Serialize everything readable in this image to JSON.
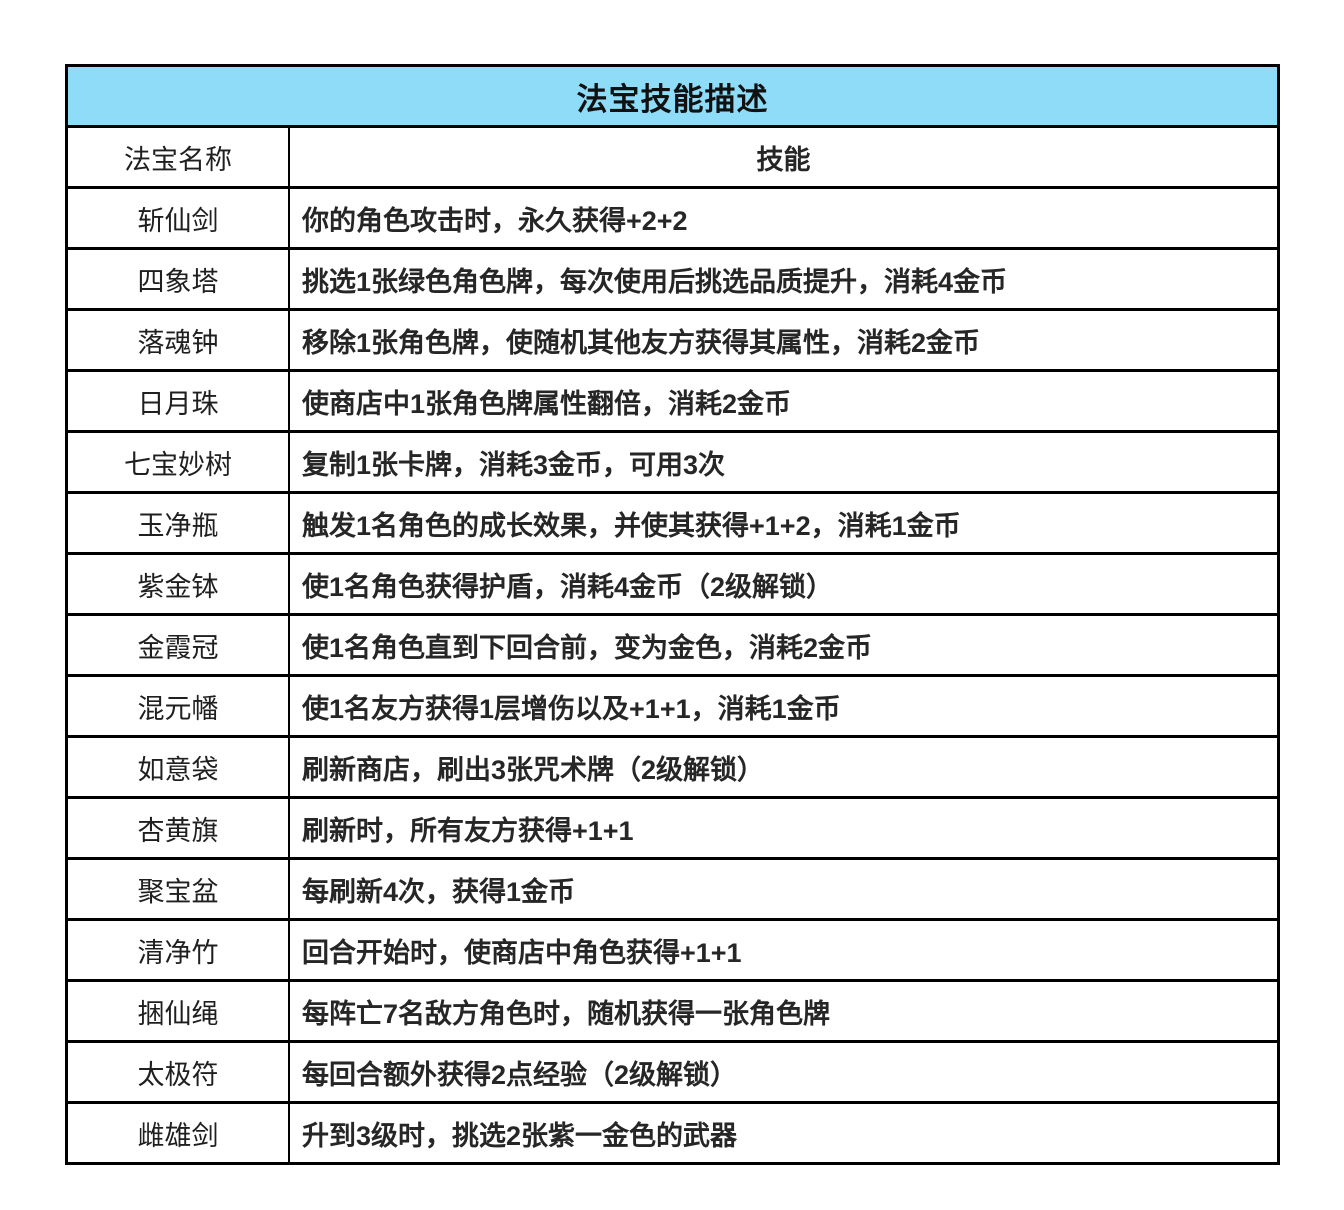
{
  "title": "法宝技能描述",
  "table": {
    "headers": {
      "name": "法宝名称",
      "skill": "技能"
    },
    "rows": [
      {
        "name": "斩仙剑",
        "skill": "你的角色攻击时，永久获得+2+2"
      },
      {
        "name": "四象塔",
        "skill": "挑选1张绿色角色牌，每次使用后挑选品质提升，消耗4金币"
      },
      {
        "name": "落魂钟",
        "skill": "移除1张角色牌，使随机其他友方获得其属性，消耗2金币"
      },
      {
        "name": "日月珠",
        "skill": "使商店中1张角色牌属性翻倍，消耗2金币"
      },
      {
        "name": "七宝妙树",
        "skill": "复制1张卡牌，消耗3金币，可用3次"
      },
      {
        "name": "玉净瓶",
        "skill": "触发1名角色的成长效果，并使其获得+1+2，消耗1金币"
      },
      {
        "name": "紫金钵",
        "skill": "使1名角色获得护盾，消耗4金币（2级解锁）"
      },
      {
        "name": "金霞冠",
        "skill": "使1名角色直到下回合前，变为金色，消耗2金币"
      },
      {
        "name": "混元幡",
        "skill": "使1名友方获得1层增伤以及+1+1，消耗1金币"
      },
      {
        "name": "如意袋",
        "skill": "刷新商店，刷出3张咒术牌（2级解锁）"
      },
      {
        "name": "杏黄旗",
        "skill": "刷新时，所有友方获得+1+1"
      },
      {
        "name": "聚宝盆",
        "skill": "每刷新4次，获得1金币"
      },
      {
        "name": "清净竹",
        "skill": "回合开始时，使商店中角色获得+1+1"
      },
      {
        "name": "捆仙绳",
        "skill": "每阵亡7名敌方角色时，随机获得一张角色牌"
      },
      {
        "name": "太极符",
        "skill": "每回合额外获得2点经验（2级解锁）"
      },
      {
        "name": "雌雄剑",
        "skill": "升到3级时，挑选2张紫一金色的武器"
      }
    ]
  },
  "colors": {
    "title_bg": "#8EDCF8",
    "border": "#000000",
    "text": "#1F1F1F"
  }
}
